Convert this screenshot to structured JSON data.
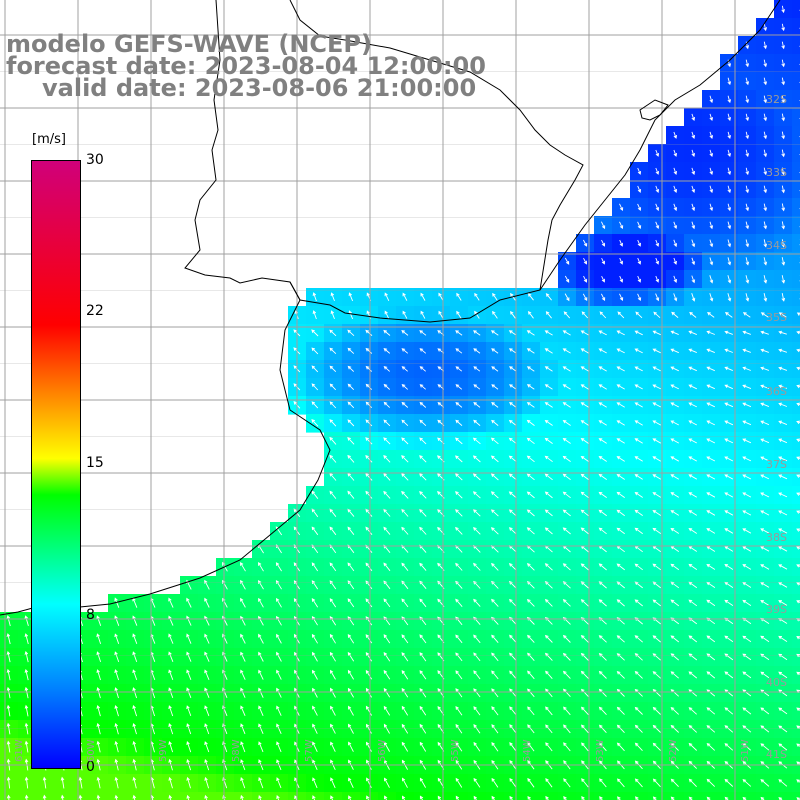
{
  "title": {
    "line1": "modelo GEFS-WAVE (NCEP)",
    "line2": "forecast date: 2023-08-04 12:00:00",
    "line3": "valid date: 2023-08-06 21:00:00"
  },
  "colorbar": {
    "unit": "[m/s]",
    "ticks": [
      "30",
      "22",
      "15",
      "8",
      "0"
    ],
    "colors": [
      "#0000ff",
      "#0080ff",
      "#00ffff",
      "#00ff00",
      "#ffff00",
      "#ff8000",
      "#ff0000",
      "#d0007a"
    ]
  },
  "lat_labels": [
    "32S",
    "33S",
    "34S",
    "35S",
    "36S",
    "37S",
    "38S",
    "39S",
    "40S",
    "41S"
  ],
  "lon_labels": [
    "61W",
    "60W",
    "59W",
    "58W",
    "57W",
    "56W",
    "55W",
    "54W",
    "53W",
    "52W",
    "51W"
  ],
  "map": {
    "land_color": "#ffffff",
    "coast_color": "#000000",
    "grid_color": "#a0a0a0"
  }
}
